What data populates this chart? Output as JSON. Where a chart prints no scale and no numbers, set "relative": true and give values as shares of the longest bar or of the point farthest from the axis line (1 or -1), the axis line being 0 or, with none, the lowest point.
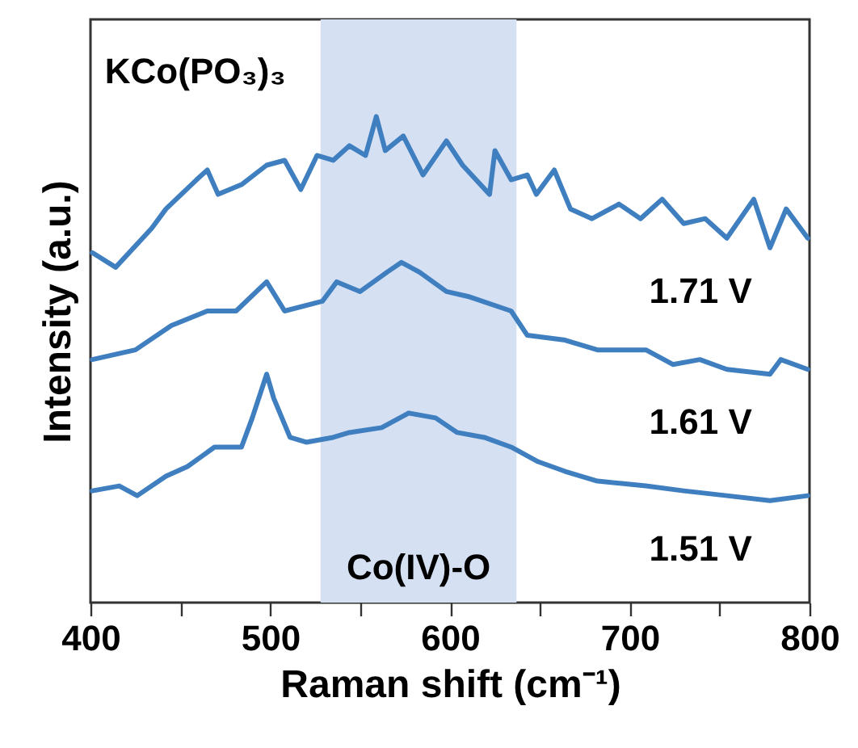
{
  "chart_data": {
    "type": "line",
    "relative": true,
    "xlabel": "Raman shift (cm⁻¹)",
    "ylabel": "Intensity (a.u.)",
    "annotations": [
      "KCo(PO₃)₃"
    ],
    "xlim": [
      400,
      800
    ],
    "xticks": [
      400,
      {
        "value": 450,
        "label": null
      },
      500,
      {
        "value": 550,
        "label": null
      },
      600,
      {
        "value": 650,
        "label": null
      },
      700,
      {
        "value": 750,
        "label": null
      },
      800
    ],
    "bands": [
      {
        "axis": "x",
        "from": 528,
        "to": 637,
        "label": "Co(IV)-O",
        "color": "#d6e0f3"
      }
    ],
    "series": [
      {
        "name": "1.71 V",
        "color": "#3f7fc0",
        "x": [
          401,
          414,
          434,
          442,
          459,
          465,
          471,
          484,
          498,
          508,
          517,
          526,
          535,
          544,
          553,
          559,
          564,
          574,
          585,
          598,
          607,
          622,
          625,
          634,
          643,
          648,
          658,
          667,
          679,
          694,
          706,
          718,
          730,
          742,
          754,
          769,
          778,
          787,
          799
        ],
        "values": [
          0.72,
          0.69,
          0.77,
          0.81,
          0.87,
          0.89,
          0.84,
          0.86,
          0.9,
          0.91,
          0.85,
          0.92,
          0.91,
          0.94,
          0.92,
          1.0,
          0.93,
          0.96,
          0.88,
          0.95,
          0.9,
          0.84,
          0.93,
          0.87,
          0.88,
          0.84,
          0.89,
          0.81,
          0.79,
          0.82,
          0.79,
          0.83,
          0.78,
          0.79,
          0.75,
          0.83,
          0.73,
          0.81,
          0.75
        ]
      },
      {
        "name": "1.61 V",
        "color": "#3f7fc0",
        "x": [
          401,
          425,
          445,
          465,
          481,
          498,
          508,
          529,
          537,
          550,
          565,
          573,
          583,
          598,
          610,
          634,
          643,
          664,
          682,
          709,
          724,
          739,
          754,
          778,
          784,
          799
        ],
        "values": [
          0.5,
          0.52,
          0.57,
          0.6,
          0.6,
          0.66,
          0.6,
          0.62,
          0.66,
          0.64,
          0.68,
          0.7,
          0.68,
          0.64,
          0.63,
          0.6,
          0.55,
          0.54,
          0.52,
          0.52,
          0.49,
          0.5,
          0.48,
          0.47,
          0.5,
          0.48
        ]
      },
      {
        "name": "1.51 V",
        "color": "#3f7fc0",
        "x": [
          401,
          416,
          426,
          442,
          454,
          469,
          484,
          490,
          498,
          502,
          511,
          520,
          535,
          544,
          562,
          577,
          592,
          604,
          619,
          634,
          649,
          664,
          682,
          709,
          730,
          754,
          778,
          799
        ],
        "values": [
          0.23,
          0.24,
          0.22,
          0.26,
          0.28,
          0.32,
          0.32,
          0.38,
          0.47,
          0.42,
          0.34,
          0.33,
          0.34,
          0.35,
          0.36,
          0.39,
          0.38,
          0.35,
          0.34,
          0.32,
          0.29,
          0.27,
          0.25,
          0.24,
          0.23,
          0.22,
          0.21,
          0.22
        ]
      }
    ]
  }
}
